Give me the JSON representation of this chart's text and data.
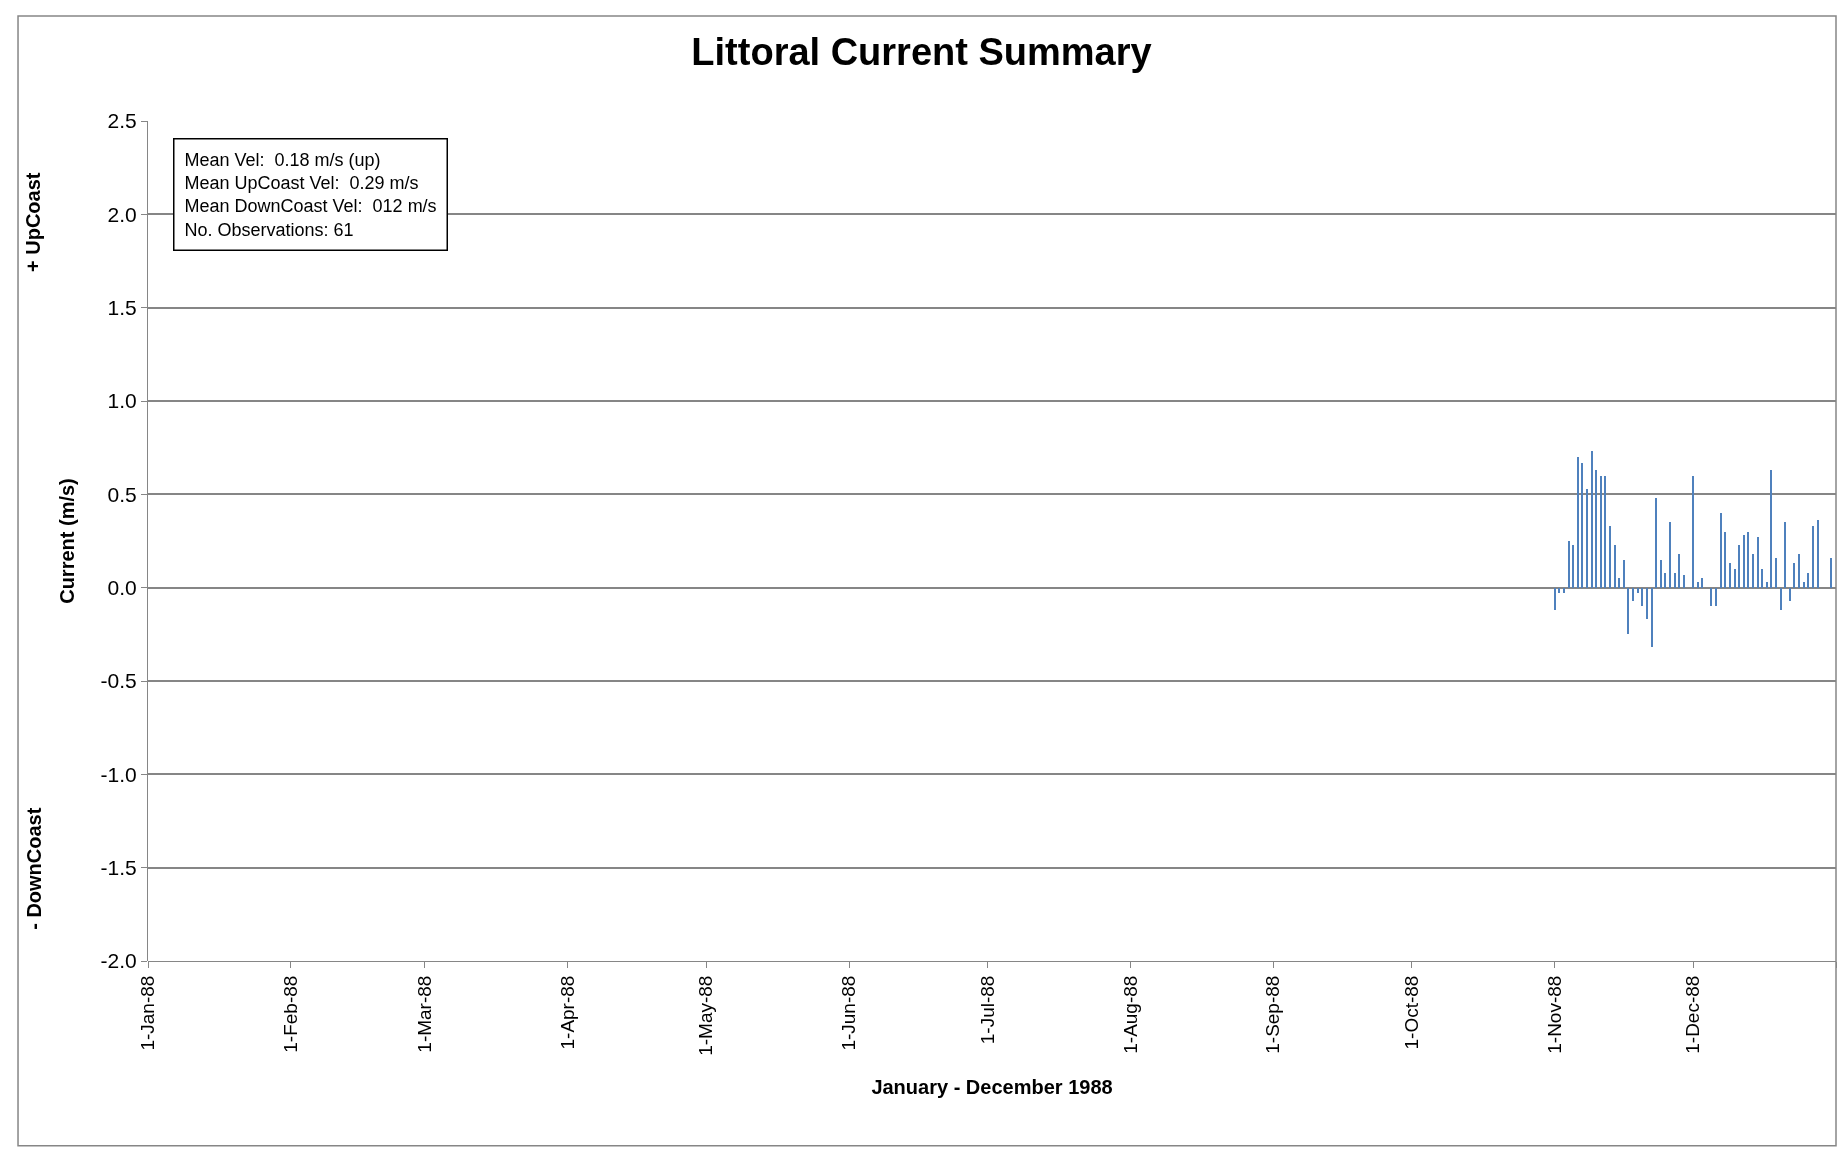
{
  "chart_data": {
    "type": "bar",
    "title": "Littoral Current Summary",
    "xlabel": "January - December 1988",
    "ylabel": "Current (m/s)",
    "annotations": [
      "+ UpCoast",
      "- DownCoast",
      "Mean Vel:  0.18 m/s (up)\nMean UpCoast Vel:  0.29 m/s\nMean DownCoast Vel:  012 m/s\nNo. Observations: 61"
    ],
    "x": [
      "1988-11-01",
      "1988-11-02",
      "1988-11-03",
      "1988-11-04",
      "1988-11-05",
      "1988-11-06",
      "1988-11-07",
      "1988-11-08",
      "1988-11-09",
      "1988-11-10",
      "1988-11-11",
      "1988-11-12",
      "1988-11-13",
      "1988-11-14",
      "1988-11-15",
      "1988-11-16",
      "1988-11-17",
      "1988-11-18",
      "1988-11-19",
      "1988-11-20",
      "1988-11-21",
      "1988-11-22",
      "1988-11-23",
      "1988-11-24",
      "1988-11-25",
      "1988-11-26",
      "1988-11-27",
      "1988-11-28",
      "1988-11-29",
      "1988-11-30",
      "1988-12-01",
      "1988-12-02",
      "1988-12-03",
      "1988-12-04",
      "1988-12-05",
      "1988-12-06",
      "1988-12-07",
      "1988-12-08",
      "1988-12-09",
      "1988-12-10",
      "1988-12-11",
      "1988-12-12",
      "1988-12-13",
      "1988-12-14",
      "1988-12-15",
      "1988-12-16",
      "1988-12-17",
      "1988-12-18",
      "1988-12-19",
      "1988-12-20",
      "1988-12-21",
      "1988-12-22",
      "1988-12-23",
      "1988-12-24",
      "1988-12-25",
      "1988-12-26",
      "1988-12-27",
      "1988-12-28",
      "1988-12-29",
      "1988-12-30",
      "1988-12-31"
    ],
    "series": [
      {
        "color": "#4f81bd",
        "values": [
          -0.12,
          -0.03,
          -0.03,
          0.25,
          0.23,
          0.7,
          0.67,
          0.53,
          0.73,
          0.63,
          0.6,
          0.6,
          0.33,
          0.23,
          0.05,
          0.15,
          -0.25,
          -0.07,
          -0.03,
          -0.1,
          -0.17,
          -0.32,
          0.48,
          0.15,
          0.08,
          0.35,
          0.08,
          0.18,
          0.07,
          null,
          0.6,
          0.03,
          0.05,
          null,
          -0.1,
          -0.1,
          0.4,
          0.3,
          0.13,
          0.1,
          0.23,
          0.28,
          0.3,
          0.18,
          0.27,
          0.1,
          0.03,
          0.63,
          0.16,
          -0.12,
          0.35,
          -0.07,
          0.13,
          0.18,
          0.03,
          0.08,
          0.33,
          0.36,
          null,
          null,
          0.16
        ]
      }
    ],
    "xlim": [
      "1988-01-01",
      "1989-01-01"
    ],
    "xticks": [
      {
        "value": "1988-01-01",
        "label": "1-Jan-88"
      },
      {
        "value": "1988-02-01",
        "label": "1-Feb-88"
      },
      {
        "value": "1988-03-01",
        "label": "1-Mar-88"
      },
      {
        "value": "1988-04-01",
        "label": "1-Apr-88"
      },
      {
        "value": "1988-05-01",
        "label": "1-May-88"
      },
      {
        "value": "1988-06-01",
        "label": "1-Jun-88"
      },
      {
        "value": "1988-07-01",
        "label": "1-Jul-88"
      },
      {
        "value": "1988-08-01",
        "label": "1-Aug-88"
      },
      {
        "value": "1988-09-01",
        "label": "1-Sep-88"
      },
      {
        "value": "1988-10-01",
        "label": "1-Oct-88"
      },
      {
        "value": "1988-11-01",
        "label": "1-Nov-88"
      },
      {
        "value": "1988-12-01",
        "label": "1-Dec-88"
      },
      {
        "value": "1989-01-01",
        "label": null
      }
    ],
    "ylim": [
      -2.0,
      2.5
    ],
    "yticks": [
      {
        "value": -2.0,
        "label": "-2.0"
      },
      {
        "value": -1.5,
        "label": "-1.5"
      },
      {
        "value": -1.0,
        "label": "-1.0"
      },
      {
        "value": -0.5,
        "label": "-0.5"
      },
      {
        "value": 0.0,
        "label": "0.0"
      },
      {
        "value": 0.5,
        "label": "0.5"
      },
      {
        "value": 1.0,
        "label": "1.0"
      },
      {
        "value": 1.5,
        "label": "1.5"
      },
      {
        "value": 2.0,
        "label": "2.0"
      },
      {
        "value": 2.5,
        "label": "2.5"
      }
    ],
    "grid": "y"
  }
}
